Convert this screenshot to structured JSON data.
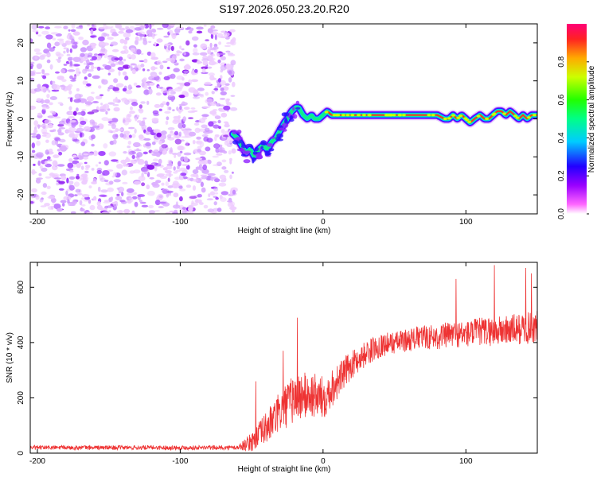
{
  "title": "S197.2026.050.23.20.R20",
  "chart_data": [
    {
      "type": "heatmap",
      "name": "spectrogram",
      "xlabel": "Height of straight line (km)",
      "ylabel": "Frequency (Hz)",
      "xlim": [
        -205,
        150
      ],
      "ylim": [
        -25,
        25
      ],
      "xticks": [
        -200,
        -100,
        0,
        100
      ],
      "yticks": [
        -20,
        -10,
        0,
        10,
        20
      ],
      "noise_region_x": [
        -205,
        -62
      ],
      "ridge": {
        "x": [
          -63,
          -60,
          -57,
          -54,
          -51,
          -48,
          -45,
          -42,
          -39,
          -36,
          -33,
          -30,
          -27,
          -25,
          -22,
          -19,
          -17,
          -14,
          -11,
          -8,
          -6,
          -3,
          0,
          3,
          6,
          10,
          15,
          20,
          30,
          40,
          50,
          60,
          70,
          80,
          85,
          88,
          91,
          94,
          97,
          100,
          103,
          106,
          110,
          113,
          116,
          119,
          122,
          125,
          128,
          131,
          134,
          137,
          140,
          143,
          146,
          150
        ],
        "y": [
          -4,
          -5,
          -7,
          -9,
          -8,
          -10,
          -8,
          -7,
          -8,
          -6,
          -5,
          -3,
          -1,
          0,
          2,
          3,
          3,
          1,
          0,
          1,
          0,
          0,
          1,
          2,
          1,
          1,
          1,
          1,
          1,
          1,
          1,
          1,
          1,
          1,
          0,
          0,
          1,
          0,
          1,
          0,
          -1,
          0,
          1,
          0,
          0,
          1,
          2,
          2,
          1,
          2,
          1,
          0,
          1,
          0,
          1,
          1
        ]
      },
      "colorbar": {
        "label": "Normalized spectral amplitude",
        "range": [
          0.0,
          1.0
        ],
        "ticks": [
          0.0,
          0.2,
          0.4,
          0.6,
          0.8
        ],
        "tick_labels": [
          "0.0",
          "0.2",
          "0.4",
          "0.6",
          "0.8"
        ]
      }
    },
    {
      "type": "line",
      "name": "snr",
      "xlabel": "Height of straight line (km)",
      "ylabel": "SNR (10 * v/v)",
      "xlim": [
        -205,
        150
      ],
      "ylim": [
        0,
        690
      ],
      "xticks": [
        -200,
        -100,
        0,
        100
      ],
      "yticks": [
        0,
        200,
        400,
        600
      ],
      "color": "#ee3333",
      "trend": {
        "x": [
          -205,
          -100,
          -60,
          -50,
          -40,
          -30,
          -20,
          -10,
          0,
          10,
          20,
          30,
          40,
          50,
          60,
          70,
          80,
          90,
          100,
          110,
          120,
          130,
          140,
          150
        ],
        "y": [
          20,
          20,
          20,
          40,
          90,
          150,
          200,
          210,
          200,
          260,
          320,
          360,
          390,
          400,
          410,
          420,
          420,
          430,
          430,
          440,
          440,
          445,
          450,
          455
        ]
      },
      "noise_amplitude": {
        "x": [
          -205,
          -60,
          -40,
          -20,
          0,
          20,
          50,
          100,
          150
        ],
        "y": [
          8,
          8,
          60,
          90,
          80,
          50,
          40,
          50,
          60
        ]
      },
      "peaks": {
        "x": [
          -47,
          -28,
          -18,
          93,
          120,
          142,
          146
        ],
        "y": [
          260,
          370,
          490,
          630,
          680,
          670,
          650
        ]
      }
    }
  ]
}
